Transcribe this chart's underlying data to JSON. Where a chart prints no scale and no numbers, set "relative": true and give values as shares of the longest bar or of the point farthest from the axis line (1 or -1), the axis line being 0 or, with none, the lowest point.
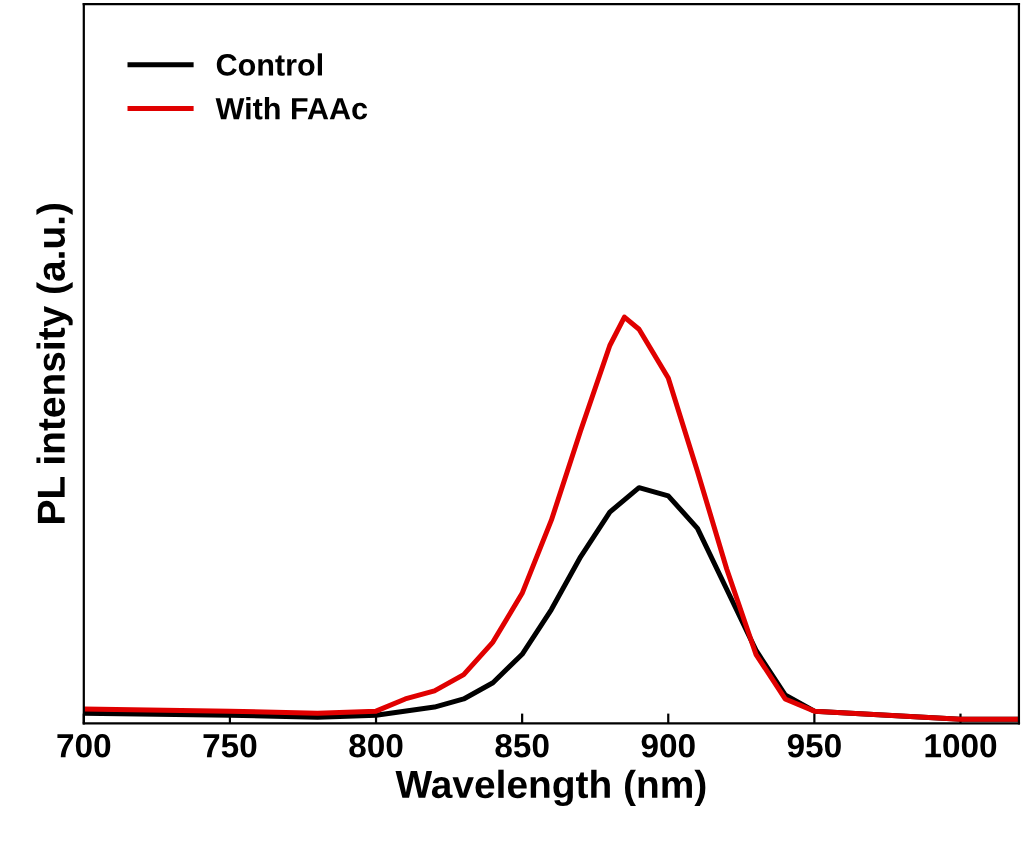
{
  "chart_data": {
    "type": "line",
    "xlabel": "Wavelength (nm)",
    "ylabel": "PL intensity (a.u.)",
    "relative": true,
    "xlim": [
      700,
      1020
    ],
    "xticks": [
      700,
      750,
      800,
      850,
      900,
      950,
      1000
    ],
    "legend": "top left",
    "grid": false,
    "tick_labels": "x",
    "series": [
      {
        "name": "Control",
        "color": "#000000",
        "x": [
          700,
          750,
          780,
          800,
          820,
          830,
          840,
          850,
          860,
          870,
          880,
          890,
          900,
          910,
          920,
          930,
          940,
          950,
          975,
          1000,
          1020
        ],
        "values": [
          0.025,
          0.02,
          0.015,
          0.02,
          0.04,
          0.06,
          0.1,
          0.17,
          0.28,
          0.41,
          0.52,
          0.58,
          0.56,
          0.48,
          0.33,
          0.18,
          0.07,
          0.03,
          0.02,
          0.01,
          0.01
        ]
      },
      {
        "name": "With FAAc",
        "color": "#e00000",
        "x": [
          700,
          750,
          780,
          800,
          810,
          820,
          830,
          840,
          850,
          860,
          870,
          880,
          885,
          890,
          900,
          910,
          920,
          930,
          940,
          950,
          975,
          1000,
          1020
        ],
        "values": [
          0.035,
          0.03,
          0.025,
          0.03,
          0.06,
          0.08,
          0.12,
          0.2,
          0.32,
          0.5,
          0.72,
          0.93,
          1.0,
          0.97,
          0.85,
          0.62,
          0.38,
          0.17,
          0.06,
          0.03,
          0.02,
          0.01,
          0.01
        ]
      }
    ]
  }
}
